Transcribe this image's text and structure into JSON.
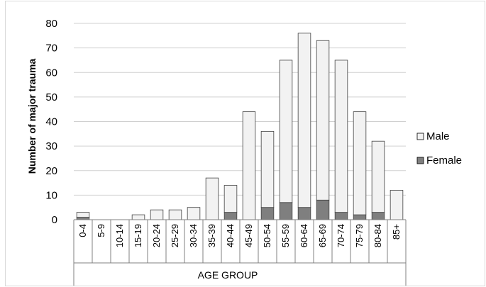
{
  "chart_data": {
    "type": "bar",
    "stacked": true,
    "title": "",
    "xlabel": "AGE GROUP",
    "ylabel": "Number of major trauma",
    "ylim": [
      0,
      80
    ],
    "ytick_step": 10,
    "yticks": [
      "0",
      "10",
      "20",
      "30",
      "40",
      "50",
      "60",
      "70",
      "80"
    ],
    "grid": "horizontal",
    "legend_position": "right",
    "categories": [
      "0-4",
      "5-9",
      "10-14",
      "15-19",
      "20-24",
      "25-29",
      "30-34",
      "35-39",
      "40-44",
      "45-49",
      "50-54",
      "55-59",
      "60-64",
      "65-69",
      "70-74",
      "75-79",
      "80-84",
      "85+"
    ],
    "series": [
      {
        "name": "Female",
        "color": "#7f7f7f",
        "values": [
          1,
          0,
          0,
          0,
          0,
          0,
          0,
          0,
          3,
          0,
          5,
          7,
          5,
          8,
          3,
          2,
          3,
          0
        ]
      },
      {
        "name": "Male",
        "color": "#f2f2f2",
        "values": [
          2,
          0,
          0,
          2,
          4,
          4,
          5,
          17,
          11,
          44,
          31,
          58,
          71,
          65,
          62,
          42,
          29,
          12
        ]
      }
    ],
    "legend": [
      "Male",
      "Female"
    ]
  }
}
